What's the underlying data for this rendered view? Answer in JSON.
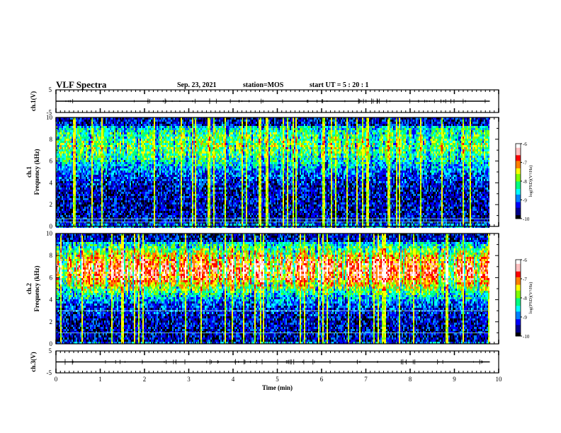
{
  "header": {
    "title": "VLF Spectra",
    "date": "Sep. 23, 2021",
    "station": "station=MOS",
    "start_ut": "start  UT =   5 : 20 : 1"
  },
  "colors": {
    "spectrogram_scale": [
      "#000000",
      "#00008b",
      "#0000ff",
      "#0080ff",
      "#00ffff",
      "#00ff80",
      "#80ff00",
      "#ffff00",
      "#ff8000",
      "#ff0000",
      "#ffc0c0",
      "#ffffff"
    ],
    "axes": "#000000"
  },
  "chart_data": [
    {
      "type": "line",
      "panel": "ch1-waveform",
      "ylabel": "ch.1(V)",
      "ylim": [
        -5,
        5
      ],
      "yticks": [
        "5",
        "-5"
      ],
      "xlim": [
        0,
        10
      ],
      "series": [
        {
          "x": [
            0,
            9.8
          ],
          "y": [
            0,
            0
          ]
        }
      ]
    },
    {
      "type": "heatmap",
      "panel": "ch1-spectrogram",
      "ylabel": "ch.1\nFrequency (kHz)",
      "ylim": [
        0,
        10
      ],
      "yticks": [
        "0",
        "2",
        "4",
        "6",
        "8",
        "10"
      ],
      "xlim": [
        0,
        10
      ],
      "data_extent_x": [
        0,
        9.8
      ],
      "band_center_khz": 7.5,
      "band_intensity": 0.55,
      "colorbar": {
        "label": "log(PSD)(V²/Hz)",
        "range": [
          -10,
          -6
        ],
        "ticks": [
          "-6",
          "-7",
          "-8",
          "-9",
          "-10"
        ]
      },
      "reference_lines_khz": [
        0.4,
        0.7
      ]
    },
    {
      "type": "heatmap",
      "panel": "ch2-spectrogram",
      "ylabel": "ch.2\nFrequency (kHz)",
      "ylim": [
        0,
        10
      ],
      "yticks": [
        "0",
        "2",
        "4",
        "6",
        "8",
        "10"
      ],
      "xlim": [
        0,
        10
      ],
      "data_extent_x": [
        0,
        9.8
      ],
      "band_center_khz": 6.8,
      "band_intensity": 0.95,
      "colorbar": {
        "label": "log(PSD)(V²/Hz)",
        "range": [
          -10,
          -6
        ],
        "ticks": [
          "-6",
          "-7",
          "-8",
          "-9",
          "-10"
        ]
      },
      "reference_lines_khz": [
        1.0,
        3.0
      ]
    },
    {
      "type": "line",
      "panel": "ch3-waveform",
      "ylabel": "ch.3(V)",
      "ylim": [
        -5,
        5
      ],
      "yticks": [
        "5",
        "-5"
      ],
      "xlim": [
        0,
        10
      ],
      "xlabel": "Time (min)",
      "xticks": [
        "0",
        "1",
        "2",
        "3",
        "4",
        "5",
        "6",
        "7",
        "8",
        "9",
        "10"
      ],
      "series": [
        {
          "x": [
            0,
            9.8
          ],
          "y": [
            0,
            0
          ]
        }
      ]
    }
  ]
}
